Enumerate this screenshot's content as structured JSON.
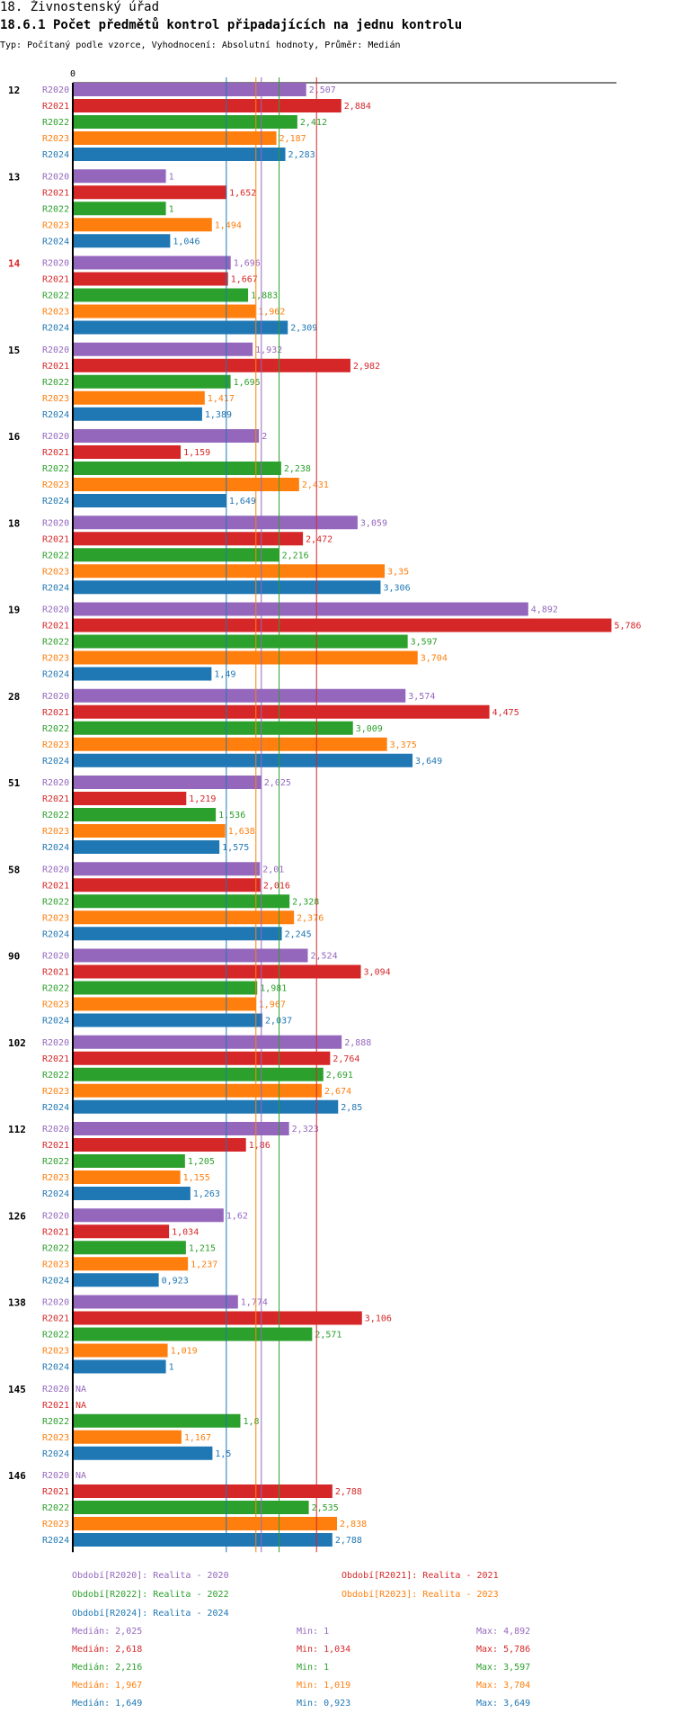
{
  "header": {
    "section": "18. Živnostenský úřad",
    "title": "18.6.1 Počet předmětů kontrol připadajících na jednu kontrolu",
    "subtitle": "Typ: Počítaný podle vzorce, Vyhodnocení: Absolutní hodnoty, Průměr: Medián"
  },
  "colors": {
    "R2020": "#9467bd",
    "R2021": "#d62728",
    "R2022": "#2ca02c",
    "R2023": "#ff7f0e",
    "R2024": "#1f77b4",
    "highlight_group": "#d62728"
  },
  "chart_data": {
    "type": "bar",
    "orientation": "horizontal",
    "axis_zero_label": "0",
    "xlim": [
      0,
      6
    ],
    "series_names": [
      "R2020",
      "R2021",
      "R2022",
      "R2023",
      "R2024"
    ],
    "highlight_group": "14",
    "groups": [
      {
        "name": "12",
        "values": [
          2.507,
          2.884,
          2.412,
          2.187,
          2.283
        ],
        "labels": [
          "2,507",
          "2,884",
          "2,412",
          "2,187",
          "2,283"
        ]
      },
      {
        "name": "13",
        "values": [
          1,
          1.652,
          1,
          1.494,
          1.046
        ],
        "labels": [
          "1",
          "1,652",
          "1",
          "1,494",
          "1,046"
        ]
      },
      {
        "name": "14",
        "values": [
          1.696,
          1.667,
          1.883,
          1.962,
          2.309
        ],
        "labels": [
          "1,696",
          "1,667",
          "1,883",
          "1,962",
          "2,309"
        ]
      },
      {
        "name": "15",
        "values": [
          1.932,
          2.982,
          1.695,
          1.417,
          1.389
        ],
        "labels": [
          "1,932",
          "2,982",
          "1,695",
          "1,417",
          "1,389"
        ]
      },
      {
        "name": "16",
        "values": [
          2,
          1.159,
          2.238,
          2.431,
          1.649
        ],
        "labels": [
          "2",
          "1,159",
          "2,238",
          "2,431",
          "1,649"
        ]
      },
      {
        "name": "18",
        "values": [
          3.059,
          2.472,
          2.216,
          3.35,
          3.306
        ],
        "labels": [
          "3,059",
          "2,472",
          "2,216",
          "3,35",
          "3,306"
        ]
      },
      {
        "name": "19",
        "values": [
          4.892,
          5.786,
          3.597,
          3.704,
          1.49
        ],
        "labels": [
          "4,892",
          "5,786",
          "3,597",
          "3,704",
          "1,49"
        ]
      },
      {
        "name": "28",
        "values": [
          3.574,
          4.475,
          3.009,
          3.375,
          3.649
        ],
        "labels": [
          "3,574",
          "4,475",
          "3,009",
          "3,375",
          "3,649"
        ]
      },
      {
        "name": "51",
        "values": [
          2.025,
          1.219,
          1.536,
          1.638,
          1.575
        ],
        "labels": [
          "2,025",
          "1,219",
          "1,536",
          "1,638",
          "1,575"
        ]
      },
      {
        "name": "58",
        "values": [
          2.01,
          2.016,
          2.328,
          2.376,
          2.245
        ],
        "labels": [
          "2,01",
          "2,016",
          "2,328",
          "2,376",
          "2,245"
        ]
      },
      {
        "name": "90",
        "values": [
          2.524,
          3.094,
          1.981,
          1.967,
          2.037
        ],
        "labels": [
          "2,524",
          "3,094",
          "1,981",
          "1,967",
          "2,037"
        ]
      },
      {
        "name": "102",
        "values": [
          2.888,
          2.764,
          2.691,
          2.674,
          2.85
        ],
        "labels": [
          "2,888",
          "2,764",
          "2,691",
          "2,674",
          "2,85"
        ]
      },
      {
        "name": "112",
        "values": [
          2.323,
          1.86,
          1.205,
          1.155,
          1.263
        ],
        "labels": [
          "2,323",
          "1,86",
          "1,205",
          "1,155",
          "1,263"
        ]
      },
      {
        "name": "126",
        "values": [
          1.62,
          1.034,
          1.215,
          1.237,
          0.923
        ],
        "labels": [
          "1,62",
          "1,034",
          "1,215",
          "1,237",
          "0,923"
        ]
      },
      {
        "name": "138",
        "values": [
          1.774,
          3.106,
          2.571,
          1.019,
          1
        ],
        "labels": [
          "1,774",
          "3,106",
          "2,571",
          "1,019",
          "1"
        ]
      },
      {
        "name": "145",
        "values": [
          null,
          null,
          1.8,
          1.167,
          1.5
        ],
        "labels": [
          "NA",
          "NA",
          "1,8",
          "1,167",
          "1,5"
        ]
      },
      {
        "name": "146",
        "values": [
          null,
          2.788,
          2.535,
          2.838,
          2.788
        ],
        "labels": [
          "NA",
          "2,788",
          "2,535",
          "2,838",
          "2,788"
        ]
      }
    ],
    "median_lines": [
      {
        "series": "R2020",
        "value": 2.025
      },
      {
        "series": "R2021",
        "value": 2.618
      },
      {
        "series": "R2022",
        "value": 2.216
      },
      {
        "series": "R2023",
        "value": 1.967
      },
      {
        "series": "R2024",
        "value": 1.649
      }
    ]
  },
  "legend": [
    {
      "series": "R2020",
      "label": "Období[R2020]: Realita - 2020"
    },
    {
      "series": "R2021",
      "label": "Období[R2021]: Realita - 2021"
    },
    {
      "series": "R2022",
      "label": "Období[R2022]: Realita - 2022"
    },
    {
      "series": "R2023",
      "label": "Období[R2023]: Realita - 2023"
    },
    {
      "series": "R2024",
      "label": "Období[R2024]: Realita - 2024"
    }
  ],
  "stats": [
    {
      "series": "R2020",
      "median": "Medián: 2,025",
      "min": "Min: 1",
      "max": "Max: 4,892"
    },
    {
      "series": "R2021",
      "median": "Medián: 2,618",
      "min": "Min: 1,034",
      "max": "Max: 5,786"
    },
    {
      "series": "R2022",
      "median": "Medián: 2,216",
      "min": "Min: 1",
      "max": "Max: 3,597"
    },
    {
      "series": "R2023",
      "median": "Medián: 1,967",
      "min": "Min: 1,019",
      "max": "Max: 3,704"
    },
    {
      "series": "R2024",
      "median": "Medián: 1,649",
      "min": "Min: 0,923",
      "max": "Max: 3,649"
    }
  ]
}
